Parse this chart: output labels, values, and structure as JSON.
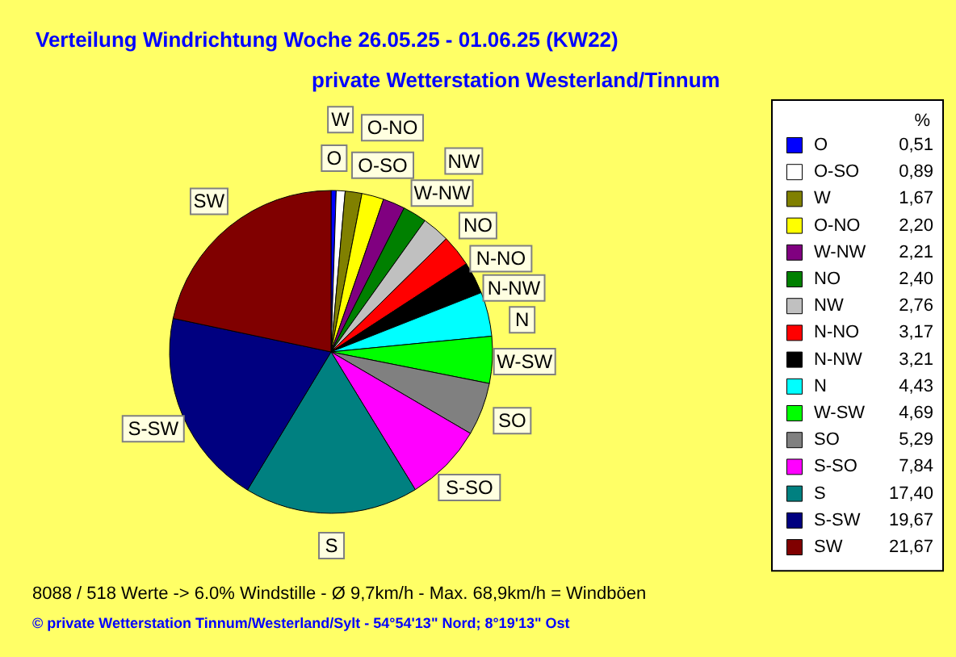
{
  "chart_data": {
    "type": "pie",
    "title": "Verteilung Windrichtung   Woche 26.05.25 - 01.06.25 (KW22)",
    "subtitle": "private Wetterstation Westerland/Tinnum",
    "legend_title": "%",
    "categories": [
      "O",
      "O-SO",
      "W",
      "O-NO",
      "W-NW",
      "NO",
      "NW",
      "N-NO",
      "N-NW",
      "N",
      "W-SW",
      "SO",
      "S-SO",
      "S",
      "S-SW",
      "SW"
    ],
    "values": [
      0.51,
      0.89,
      1.67,
      2.2,
      2.21,
      2.4,
      2.76,
      3.17,
      3.21,
      4.43,
      4.69,
      5.29,
      7.84,
      17.4,
      19.67,
      21.67
    ],
    "value_labels": [
      "0,51",
      "0,89",
      "1,67",
      "2,20",
      "2,21",
      "2,40",
      "2,76",
      "3,17",
      "3,21",
      "4,43",
      "4,69",
      "5,29",
      "7,84",
      "17,40",
      "19,67",
      "21,67"
    ],
    "colors": [
      "#0000ff",
      "#ffffff",
      "#808000",
      "#ffff00",
      "#800080",
      "#008000",
      "#c0c0c0",
      "#ff0000",
      "#000000",
      "#00ffff",
      "#00ff00",
      "#808080",
      "#ff00ff",
      "#008080",
      "#000080",
      "#800000"
    ],
    "legend": "right",
    "annotations": [
      "8088 / 518 Werte  -> 6.0% Windstille   -   Ø 9,7km/h  -  Max. 68,9km/h = Windböen",
      "© private Wetterstation Tinnum/Westerland/Sylt  -  54°54'13\" Nord; 8°19'13\" Ost"
    ]
  }
}
